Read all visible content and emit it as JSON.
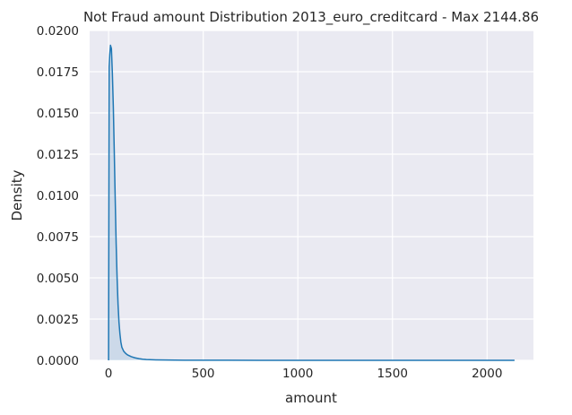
{
  "chart_data": {
    "type": "area",
    "title": "Not Fraud amount Distribution 2013_euro_creditcard - Max 2144.86",
    "xlabel": "amount",
    "ylabel": "Density",
    "xlim": [
      -100,
      2245
    ],
    "ylim": [
      0,
      0.02
    ],
    "xticks": [
      0,
      500,
      1000,
      1500,
      2000
    ],
    "xtick_labels": [
      "0",
      "500",
      "1000",
      "1500",
      "2000"
    ],
    "yticks": [
      0,
      0.0025,
      0.005,
      0.0075,
      0.01,
      0.0125,
      0.015,
      0.0175,
      0.02
    ],
    "ytick_labels": [
      "0.0000",
      "0.0025",
      "0.0050",
      "0.0075",
      "0.0100",
      "0.0125",
      "0.0150",
      "0.0175",
      "0.0200"
    ],
    "grid": true,
    "colors": {
      "background": "#eaeaf2",
      "grid": "#ffffff",
      "line": "#1f77b4",
      "fill": "#1f77b4"
    },
    "series": [
      {
        "x": [
          0,
          3,
          6,
          10,
          15,
          20,
          25,
          30,
          35,
          40,
          45,
          50,
          55,
          60,
          65,
          70,
          80,
          90,
          100,
          120,
          140,
          160,
          180,
          200,
          250,
          300,
          400,
          600,
          800,
          1000,
          1500,
          2000,
          2145
        ],
        "y": [
          0.0,
          0.0178,
          0.0185,
          0.0191,
          0.0189,
          0.0174,
          0.0154,
          0.0127,
          0.0098,
          0.0071,
          0.005,
          0.0034,
          0.0023,
          0.0016,
          0.0011,
          0.0008,
          0.00055,
          0.00042,
          0.00033,
          0.00022,
          0.00015,
          0.0001,
          7e-05,
          5e-05,
          3e-05,
          2e-05,
          1e-05,
          4e-06,
          2e-06,
          1e-06,
          5e-07,
          2e-07,
          0.0
        ]
      }
    ]
  }
}
